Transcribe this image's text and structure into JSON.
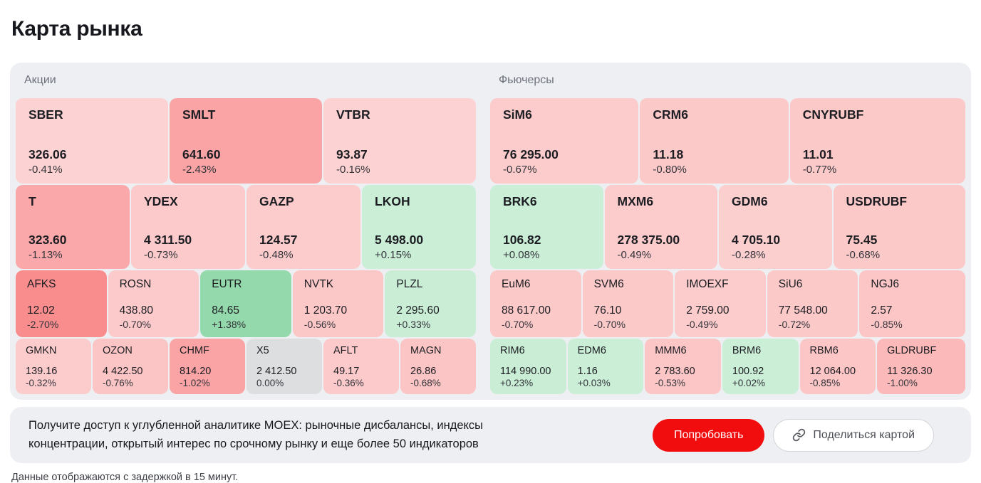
{
  "page": {
    "title": "Карта рынка",
    "footer": "Данные отображаются с задержкой в 15 минут."
  },
  "colors": {
    "panel_bg": "#edeff2",
    "negative_light": "#fccaca",
    "negative_medium": "#faa4a6",
    "negative_strong": "#f98d8e",
    "positive_light": "#cbeed7",
    "positive_medium": "#94d9ab",
    "neutral": "#dcdee0",
    "accent_red": "#f10d0d"
  },
  "sections": [
    {
      "id": "stocks",
      "label": "Акции",
      "rows": [
        [
          {
            "ticker": "SBER",
            "price": "326.06",
            "change": "-0.41%",
            "bg": "#fcd2d2"
          },
          {
            "ticker": "SMLT",
            "price": "641.60",
            "change": "-2.43%",
            "bg": "#faa4a6"
          },
          {
            "ticker": "VTBR",
            "price": "93.87",
            "change": "-0.16%",
            "bg": "#fcd2d2"
          }
        ],
        [
          {
            "ticker": "T",
            "price": "323.60",
            "change": "-1.13%",
            "bg": "#faa8a9"
          },
          {
            "ticker": "YDEX",
            "price": "4 311.50",
            "change": "-0.73%",
            "bg": "#fccaca"
          },
          {
            "ticker": "GAZP",
            "price": "124.57",
            "change": "-0.48%",
            "bg": "#fccccc"
          },
          {
            "ticker": "LKOH",
            "price": "5 498.00",
            "change": "+0.15%",
            "bg": "#cbeed7"
          }
        ],
        [
          {
            "ticker": "AFKS",
            "price": "12.02",
            "change": "-2.70%",
            "bg": "#f98d8e"
          },
          {
            "ticker": "ROSN",
            "price": "438.80",
            "change": "-0.70%",
            "bg": "#fccaca"
          },
          {
            "ticker": "EUTR",
            "price": "84.65",
            "change": "+1.38%",
            "bg": "#94d9ab"
          },
          {
            "ticker": "NVTK",
            "price": "1 203.70",
            "change": "-0.56%",
            "bg": "#fcc7c7"
          },
          {
            "ticker": "PLZL",
            "price": "2 295.60",
            "change": "+0.33%",
            "bg": "#c9edd5"
          }
        ],
        [
          {
            "ticker": "GMKN",
            "price": "139.16",
            "change": "-0.32%",
            "bg": "#fccccc"
          },
          {
            "ticker": "OZON",
            "price": "4 422.50",
            "change": "-0.76%",
            "bg": "#fcc5c5"
          },
          {
            "ticker": "CHMF",
            "price": "814.20",
            "change": "-1.02%",
            "bg": "#faa4a6"
          },
          {
            "ticker": "X5",
            "price": "2 412.50",
            "change": "0.00%",
            "bg": "#dcdee0"
          },
          {
            "ticker": "AFLT",
            "price": "49.17",
            "change": "-0.36%",
            "bg": "#fccaca"
          },
          {
            "ticker": "MAGN",
            "price": "26.86",
            "change": "-0.68%",
            "bg": "#fcc5c5"
          }
        ]
      ]
    },
    {
      "id": "futures",
      "label": "Фьючерсы",
      "rows": [
        [
          {
            "ticker": "SiM6",
            "price": "76 295.00",
            "change": "-0.67%",
            "bg": "#fccccc"
          },
          {
            "ticker": "CRM6",
            "price": "11.18",
            "change": "-0.80%",
            "bg": "#fcc9c9"
          },
          {
            "ticker": "CNYRUBF",
            "price": "11.01",
            "change": "-0.77%",
            "bg": "#fcc9c9"
          }
        ],
        [
          {
            "ticker": "BRK6",
            "price": "106.82",
            "change": "+0.08%",
            "bg": "#cbeed7"
          },
          {
            "ticker": "MXM6",
            "price": "278 375.00",
            "change": "-0.49%",
            "bg": "#fccccc"
          },
          {
            "ticker": "GDM6",
            "price": "4 705.10",
            "change": "-0.28%",
            "bg": "#fccfcf"
          },
          {
            "ticker": "USDRUBF",
            "price": "75.45",
            "change": "-0.68%",
            "bg": "#fcc9c9"
          }
        ],
        [
          {
            "ticker": "EuM6",
            "price": "88 617.00",
            "change": "-0.70%",
            "bg": "#fcc9c9"
          },
          {
            "ticker": "SVM6",
            "price": "76.10",
            "change": "-0.70%",
            "bg": "#fcc9c9"
          },
          {
            "ticker": "IMOEXF",
            "price": "2 759.00",
            "change": "-0.49%",
            "bg": "#fccccc"
          },
          {
            "ticker": "SiU6",
            "price": "77 548.00",
            "change": "-0.72%",
            "bg": "#fcc9c9"
          },
          {
            "ticker": "NGJ6",
            "price": "2.57",
            "change": "-0.85%",
            "bg": "#fcc6c6"
          }
        ],
        [
          {
            "ticker": "RIM6",
            "price": "114 990.00",
            "change": "+0.23%",
            "bg": "#c9edd5"
          },
          {
            "ticker": "EDM6",
            "price": "1.16",
            "change": "+0.03%",
            "bg": "#cbeed7"
          },
          {
            "ticker": "MMM6",
            "price": "2 783.60",
            "change": "-0.53%",
            "bg": "#fcc6c6"
          },
          {
            "ticker": "BRM6",
            "price": "100.92",
            "change": "+0.02%",
            "bg": "#cbeed7"
          },
          {
            "ticker": "RBM6",
            "price": "12 064.00",
            "change": "-0.85%",
            "bg": "#fcc6c6"
          },
          {
            "ticker": "GLDRUBF",
            "price": "11 326.30",
            "change": "-1.00%",
            "bg": "#fbb9ba"
          }
        ]
      ]
    }
  ],
  "banner": {
    "text": "Получите доступ к углубленной аналитике MOEX: рыночные дисбалансы, индексы концентрации, открытый интерес по срочному рынку и еще более 50 индикаторов",
    "try_label": "Попробовать",
    "share_label": "Поделиться картой",
    "share_icon": "link-icon"
  }
}
